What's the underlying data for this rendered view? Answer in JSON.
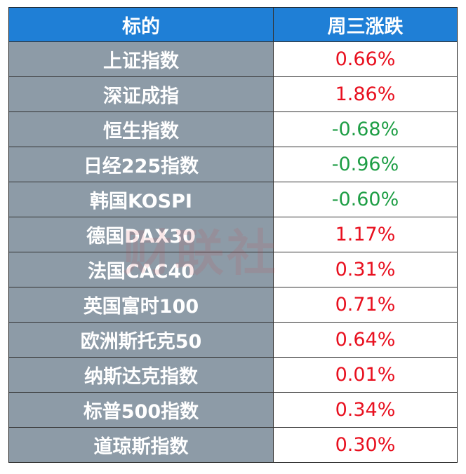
{
  "table": {
    "header": [
      "标的",
      "周三涨跌"
    ],
    "rows": [
      [
        "上证指数",
        "0.66%"
      ],
      [
        "深证成指",
        "1.86%"
      ],
      [
        "恒生指数",
        "-0.68%"
      ],
      [
        "日经225指数",
        "-0.96%"
      ],
      [
        "韩国KOSPI",
        "-0.60%"
      ],
      [
        "德国DAX30",
        "1.17%"
      ],
      [
        "法国CAC40",
        "0.31%"
      ],
      [
        "英国富时100",
        "0.71%"
      ],
      [
        "欧洲斯托克50",
        "0.64%"
      ],
      [
        "纳斯达克指数",
        "0.01%"
      ],
      [
        "标普500指数",
        "0.34%"
      ],
      [
        "道琼斯指数",
        "0.30%"
      ]
    ],
    "colors": {
      "header": "#1f7fd6",
      "label": "#8d9ba7",
      "up": "#e8101f",
      "down": "#1e9e45"
    }
  },
  "watermark": "财联社"
}
